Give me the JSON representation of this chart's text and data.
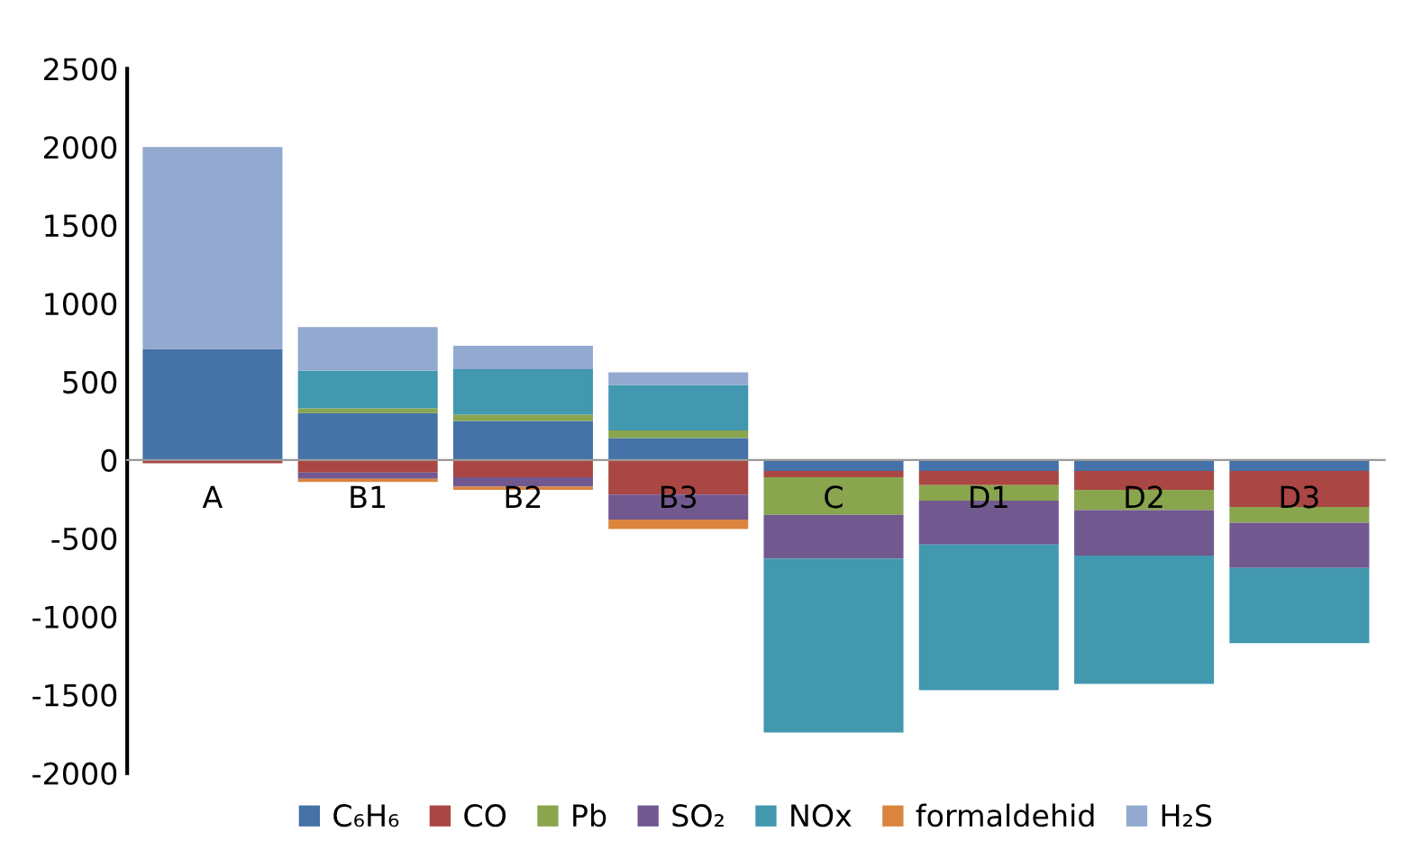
{
  "chart_data": {
    "type": "bar",
    "stacked": true,
    "categories": [
      "A",
      "B1",
      "B2",
      "B3",
      "C",
      "D1",
      "D2",
      "D3"
    ],
    "series": [
      {
        "name": "C₆H₆",
        "color": "#4572a7",
        "values": [
          710,
          300,
          250,
          140,
          -70,
          -70,
          -70,
          -70
        ]
      },
      {
        "name": "CO",
        "color": "#aa4643",
        "values": [
          -20,
          -80,
          -110,
          -220,
          -40,
          -90,
          -120,
          -230
        ]
      },
      {
        "name": "Pb",
        "color": "#89a54e",
        "values": [
          0,
          30,
          40,
          50,
          -240,
          -100,
          -130,
          -100
        ]
      },
      {
        "name": "SO₂",
        "color": "#71588f",
        "values": [
          0,
          -40,
          -60,
          -160,
          -280,
          -280,
          -290,
          -290
        ]
      },
      {
        "name": "NOx",
        "color": "#4198af",
        "values": [
          0,
          240,
          290,
          290,
          -1110,
          -930,
          -820,
          -480
        ]
      },
      {
        "name": "formaldehid",
        "color": "#db843d",
        "values": [
          0,
          -20,
          -20,
          -60,
          0,
          0,
          0,
          0
        ]
      },
      {
        "name": "H₂S",
        "color": "#93a9cf",
        "values": [
          1290,
          280,
          150,
          80,
          0,
          0,
          0,
          0
        ]
      }
    ],
    "ylim": [
      -2000,
      2500
    ],
    "yticks": [
      -2000,
      -1500,
      -1000,
      -500,
      0,
      500,
      1000,
      1500,
      2000,
      2500
    ],
    "grid": false,
    "legend": "bottom"
  }
}
